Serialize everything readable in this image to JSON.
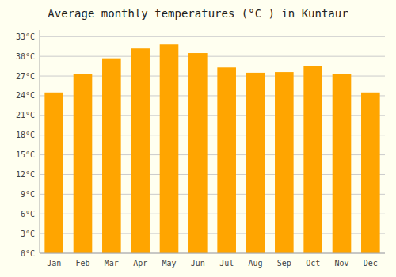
{
  "chart_data": {
    "type": "bar",
    "title": "Average monthly temperatures (°C ) in Kuntaur",
    "categories": [
      "Jan",
      "Feb",
      "Mar",
      "Apr",
      "May",
      "Jun",
      "Jul",
      "Aug",
      "Sep",
      "Oct",
      "Nov",
      "Dec"
    ],
    "values": [
      24.5,
      27.3,
      29.7,
      31.2,
      31.8,
      30.5,
      28.3,
      27.5,
      27.6,
      28.5,
      27.3,
      24.5
    ],
    "color": "#FFA500",
    "ylim": [
      0,
      34
    ],
    "yticks": [
      {
        "value": 0,
        "label": "0°C"
      },
      {
        "value": 3,
        "label": "3°C"
      },
      {
        "value": 6,
        "label": "6°C"
      },
      {
        "value": 9,
        "label": "9°C"
      },
      {
        "value": 12,
        "label": "12°C"
      },
      {
        "value": 15,
        "label": "15°C"
      },
      {
        "value": 18,
        "label": "18°C"
      },
      {
        "value": 21,
        "label": "21°C"
      },
      {
        "value": 24,
        "label": "24°C"
      },
      {
        "value": 27,
        "label": "27°C"
      },
      {
        "value": 30,
        "label": "30°C"
      },
      {
        "value": 33,
        "label": "33°C"
      }
    ],
    "grid": true
  }
}
